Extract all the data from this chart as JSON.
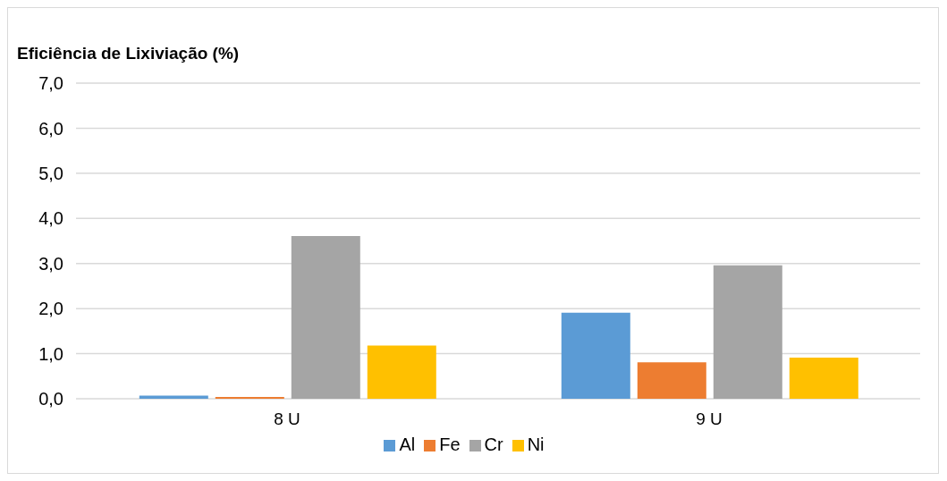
{
  "chart_data": {
    "type": "bar",
    "title": "Eficiência de Lixiviação (%)",
    "categories": [
      "8 U",
      "9 U"
    ],
    "series": [
      {
        "name": "Al",
        "color": "#5b9bd5",
        "values": [
          0.07,
          1.91
        ]
      },
      {
        "name": "Fe",
        "color": "#ed7d31",
        "values": [
          0.04,
          0.81
        ]
      },
      {
        "name": "Cr",
        "color": "#a5a5a5",
        "values": [
          3.61,
          2.96
        ]
      },
      {
        "name": "Ni",
        "color": "#ffc000",
        "values": [
          1.18,
          0.91
        ]
      }
    ],
    "ylim": [
      0,
      7
    ],
    "yticks": [
      {
        "value": 0,
        "label": "0,0"
      },
      {
        "value": 1,
        "label": "1,0"
      },
      {
        "value": 2,
        "label": "2,0"
      },
      {
        "value": 3,
        "label": "3,0"
      },
      {
        "value": 4,
        "label": "4,0"
      },
      {
        "value": 5,
        "label": "5,0"
      },
      {
        "value": 6,
        "label": "6,0"
      },
      {
        "value": 7,
        "label": "7,0"
      }
    ],
    "grid": "y",
    "legend": "bottom"
  }
}
